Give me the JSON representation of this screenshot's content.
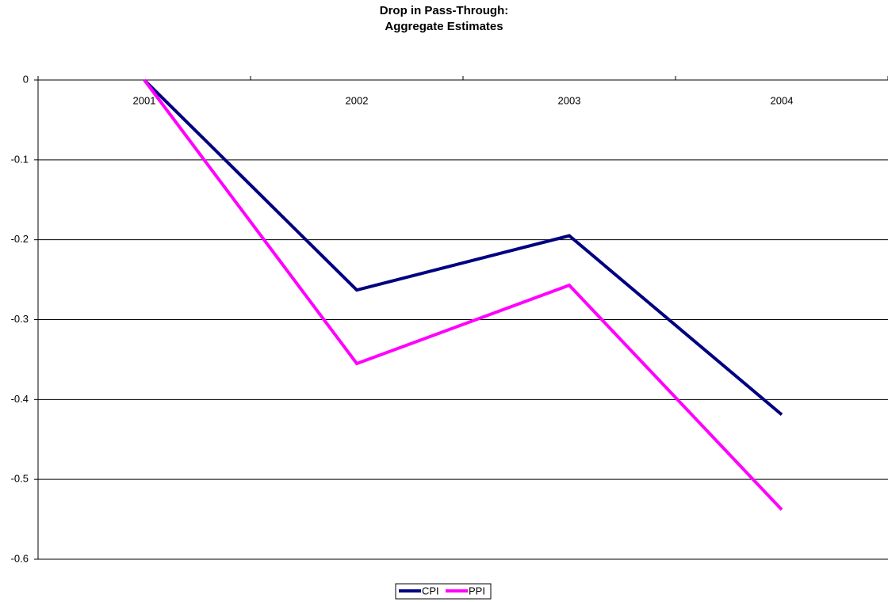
{
  "chart_data": {
    "type": "line",
    "title": [
      "Drop in Pass-Through:",
      "Aggregate Estimates"
    ],
    "categories": [
      "2001",
      "2002",
      "2003",
      "2004"
    ],
    "series": [
      {
        "name": "CPI",
        "color": "#000080",
        "values": [
          0,
          -0.263,
          -0.195,
          -0.419
        ]
      },
      {
        "name": "PPI",
        "color": "#ff00ff",
        "values": [
          0,
          -0.355,
          -0.257,
          -0.538
        ]
      }
    ],
    "ylim": [
      -0.6,
      0
    ],
    "yticks": [
      0,
      -0.1,
      -0.2,
      -0.3,
      -0.4,
      -0.5,
      -0.6
    ],
    "grid": true,
    "legend": "bottom"
  }
}
